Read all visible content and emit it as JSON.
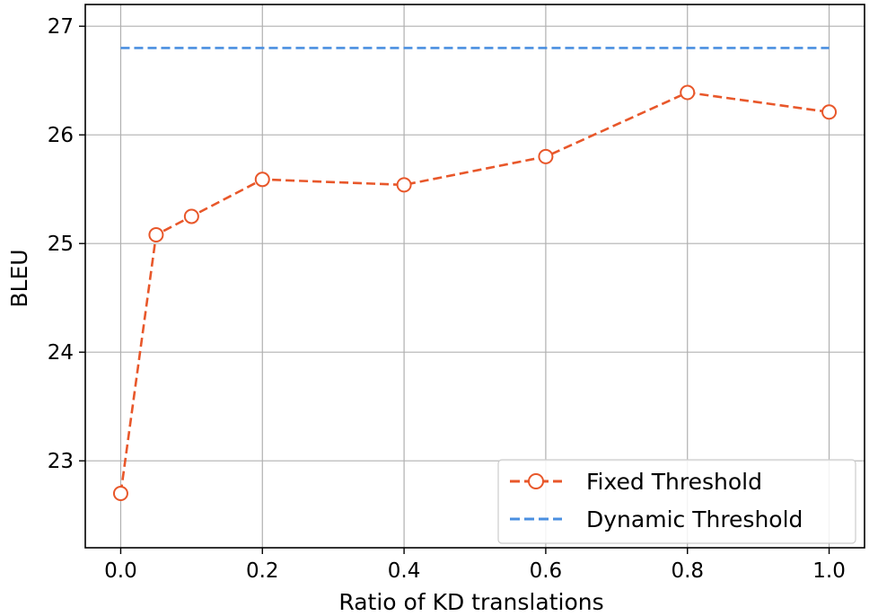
{
  "chart_data": {
    "type": "line",
    "xlabel": "Ratio of KD translations",
    "ylabel": "BLEU",
    "xlim": [
      -0.05,
      1.05
    ],
    "ylim": [
      22.2,
      27.2
    ],
    "x_ticks": [
      "0.0",
      "0.2",
      "0.4",
      "0.6",
      "0.8",
      "1.0"
    ],
    "x_tick_values": [
      0.0,
      0.2,
      0.4,
      0.6,
      0.8,
      1.0
    ],
    "y_ticks": [
      "23",
      "24",
      "25",
      "26",
      "27"
    ],
    "y_tick_values": [
      23,
      24,
      25,
      26,
      27
    ],
    "grid": true,
    "legend_position": "bottom-right",
    "series": [
      {
        "name": "Fixed Threshold",
        "style": "dashed-with-hollow-circle-markers",
        "color": "#e8572a",
        "x": [
          0.0,
          0.05,
          0.1,
          0.2,
          0.4,
          0.6,
          0.8,
          1.0
        ],
        "y": [
          22.7,
          25.08,
          25.25,
          25.59,
          25.54,
          25.8,
          26.39,
          26.21
        ]
      },
      {
        "name": "Dynamic Threshold",
        "style": "dashed",
        "color": "#4a8fe0",
        "x": [
          0.0,
          1.0
        ],
        "y": [
          26.8,
          26.8
        ]
      }
    ]
  }
}
